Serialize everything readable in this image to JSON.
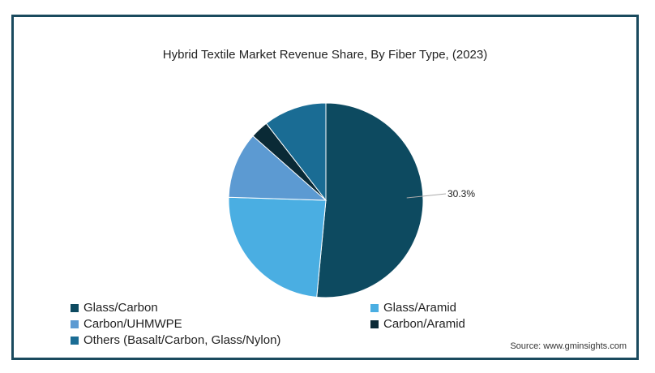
{
  "chart_data": {
    "type": "pie",
    "title": "Hybrid Textile Market Revenue Share, By Fiber Type,  (2023)",
    "slices": [
      {
        "label": "Glass/Carbon",
        "value": 51.5,
        "color": "#0d4a60"
      },
      {
        "label": "Glass/Aramid",
        "value": 24.0,
        "color": "#4aaee2"
      },
      {
        "label": "Carbon/UHMWPE",
        "value": 11.0,
        "color": "#5c9ad2"
      },
      {
        "label": "Carbon/Aramid",
        "value": 3.0,
        "color": "#0a2a36"
      },
      {
        "label": "Others (Basalt/Carbon, Glass/Nylon)",
        "value": 10.5,
        "color": "#1a6c94"
      }
    ],
    "annotation": {
      "text": "30.3%"
    }
  },
  "legend": [
    {
      "label": "Glass/Carbon",
      "color": "#0d4a60"
    },
    {
      "label": "Glass/Aramid",
      "color": "#4aaee2"
    },
    {
      "label": "Carbon/UHMWPE",
      "color": "#5c9ad2"
    },
    {
      "label": "Carbon/Aramid",
      "color": "#0a2a36"
    },
    {
      "label": "Others (Basalt/Carbon, Glass/Nylon)",
      "color": "#1a6c94"
    }
  ],
  "source": "Source: www.gminsights.com"
}
